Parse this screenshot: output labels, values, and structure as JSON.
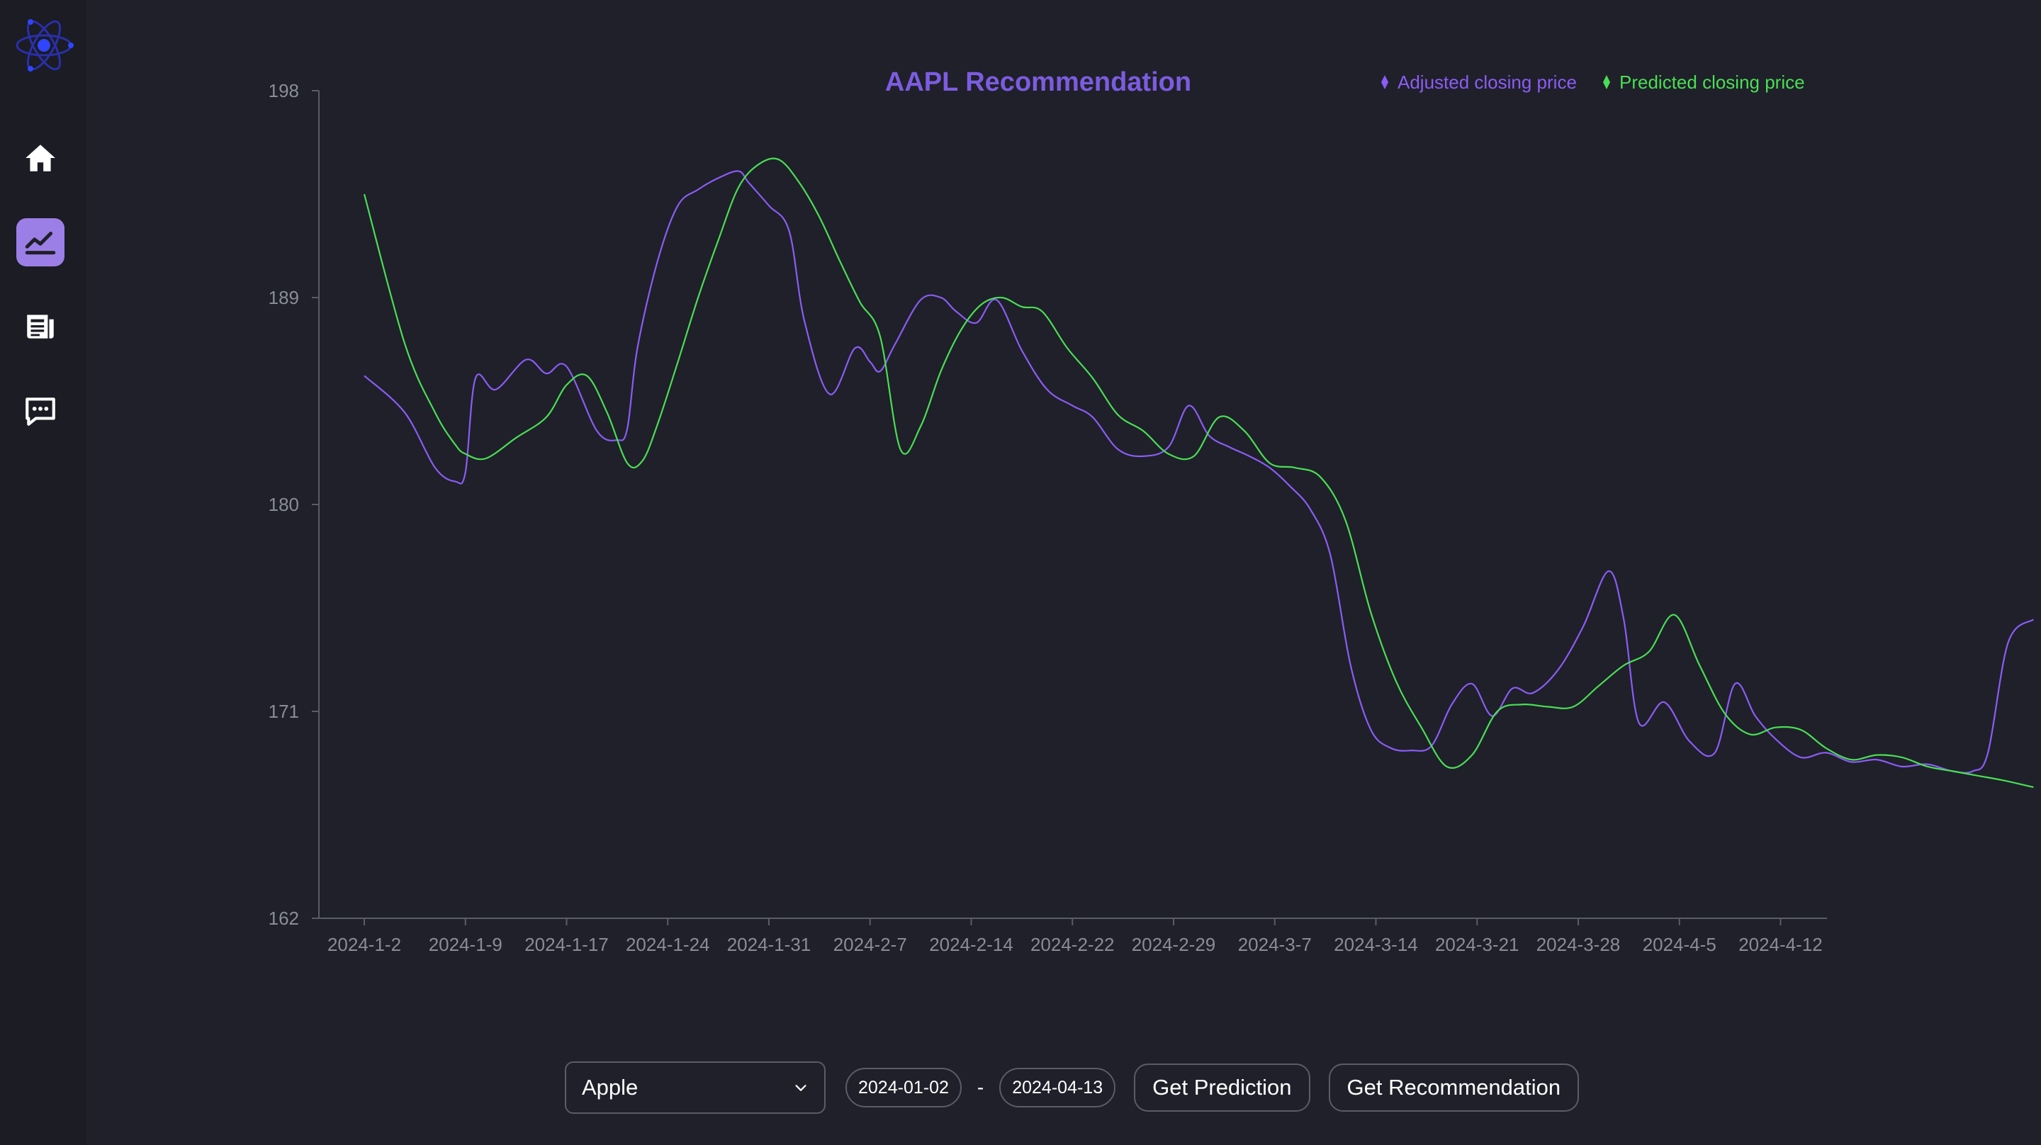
{
  "app": {
    "logo_icon": "atom-icon",
    "accent_color": "#9b7fe6"
  },
  "sidebar": {
    "items": [
      {
        "name": "home",
        "icon": "home-icon",
        "active": false
      },
      {
        "name": "chart",
        "icon": "chart-line-icon",
        "active": true
      },
      {
        "name": "news",
        "icon": "newspaper-icon",
        "active": false
      },
      {
        "name": "chat",
        "icon": "chat-icon",
        "active": false
      }
    ]
  },
  "chart_data": {
    "type": "line",
    "title": "AAPL Recommendation",
    "xlabel": "",
    "ylabel": "",
    "ylim": [
      162,
      198
    ],
    "y_ticks": [
      162,
      171,
      180,
      189,
      198
    ],
    "x_ticks": [
      "2024-1-2",
      "2024-1-9",
      "2024-1-17",
      "2024-1-24",
      "2024-1-31",
      "2024-2-7",
      "2024-2-14",
      "2024-2-22",
      "2024-2-29",
      "2024-3-7",
      "2024-3-14",
      "2024-3-21",
      "2024-3-28",
      "2024-4-5",
      "2024-4-12"
    ],
    "legend_position": "top-right",
    "grid": false,
    "series": [
      {
        "name": "Adjusted closing price",
        "color": "#8b5cf6",
        "points": [
          [
            0,
            185.6
          ],
          [
            0.4,
            184.0
          ],
          [
            0.7,
            181.6
          ],
          [
            0.9,
            181.0
          ],
          [
            1.0,
            181.4
          ],
          [
            1.1,
            185.5
          ],
          [
            1.3,
            185.0
          ],
          [
            1.6,
            186.3
          ],
          [
            1.8,
            185.7
          ],
          [
            2.0,
            186.0
          ],
          [
            2.3,
            183.2
          ],
          [
            2.5,
            182.8
          ],
          [
            2.6,
            183.3
          ],
          [
            2.7,
            186.8
          ],
          [
            2.9,
            190.6
          ],
          [
            3.1,
            193.0
          ],
          [
            3.3,
            193.7
          ],
          [
            3.5,
            194.2
          ],
          [
            3.7,
            194.5
          ],
          [
            3.8,
            194.0
          ],
          [
            4.0,
            193.0
          ],
          [
            4.2,
            191.9
          ],
          [
            4.35,
            188.0
          ],
          [
            4.6,
            184.8
          ],
          [
            4.85,
            186.8
          ],
          [
            5.0,
            186.2
          ],
          [
            5.1,
            185.8
          ],
          [
            5.25,
            187.0
          ],
          [
            5.5,
            188.9
          ],
          [
            5.7,
            189.0
          ],
          [
            5.85,
            188.4
          ],
          [
            6.05,
            187.9
          ],
          [
            6.25,
            188.9
          ],
          [
            6.5,
            186.7
          ],
          [
            6.75,
            185.0
          ],
          [
            7.0,
            184.3
          ],
          [
            7.2,
            183.8
          ],
          [
            7.45,
            182.4
          ],
          [
            7.7,
            182.1
          ],
          [
            7.95,
            182.5
          ],
          [
            8.15,
            184.3
          ],
          [
            8.35,
            183.0
          ],
          [
            8.55,
            182.5
          ],
          [
            8.75,
            182.1
          ],
          [
            8.95,
            181.6
          ],
          [
            9.15,
            180.8
          ],
          [
            9.35,
            179.8
          ],
          [
            9.55,
            177.8
          ],
          [
            9.75,
            173.0
          ],
          [
            9.95,
            170.2
          ],
          [
            10.15,
            169.4
          ],
          [
            10.35,
            169.3
          ],
          [
            10.55,
            169.5
          ],
          [
            10.75,
            171.3
          ],
          [
            10.95,
            172.2
          ],
          [
            11.15,
            170.8
          ],
          [
            11.35,
            172.0
          ],
          [
            11.55,
            171.8
          ],
          [
            11.8,
            172.8
          ],
          [
            12.05,
            174.7
          ],
          [
            12.3,
            177.1
          ],
          [
            12.45,
            175.0
          ],
          [
            12.6,
            170.5
          ],
          [
            12.85,
            171.4
          ],
          [
            13.1,
            169.7
          ],
          [
            13.35,
            169.2
          ],
          [
            13.55,
            172.2
          ],
          [
            13.75,
            170.8
          ],
          [
            13.95,
            169.8
          ],
          [
            14.2,
            169.0
          ],
          [
            14.45,
            169.2
          ],
          [
            14.7,
            168.8
          ],
          [
            14.95,
            168.9
          ],
          [
            15.2,
            168.6
          ],
          [
            15.45,
            168.7
          ],
          [
            15.7,
            168.4
          ],
          [
            15.9,
            168.4
          ],
          [
            16.05,
            169.2
          ],
          [
            16.25,
            174.0
          ],
          [
            16.5,
            175.0
          ]
        ]
      },
      {
        "name": "Predicted closing price",
        "color": "#4ade55",
        "points": [
          [
            0,
            193.5
          ],
          [
            0.4,
            187.0
          ],
          [
            0.7,
            184.0
          ],
          [
            0.9,
            182.6
          ],
          [
            1.0,
            182.2
          ],
          [
            1.2,
            182.0
          ],
          [
            1.5,
            182.9
          ],
          [
            1.8,
            183.8
          ],
          [
            2.0,
            185.2
          ],
          [
            2.2,
            185.6
          ],
          [
            2.4,
            184.0
          ],
          [
            2.6,
            181.8
          ],
          [
            2.75,
            181.9
          ],
          [
            2.9,
            183.5
          ],
          [
            3.1,
            186.2
          ],
          [
            3.3,
            189.0
          ],
          [
            3.5,
            191.5
          ],
          [
            3.7,
            193.8
          ],
          [
            3.9,
            194.8
          ],
          [
            4.1,
            195.0
          ],
          [
            4.3,
            194.0
          ],
          [
            4.5,
            192.5
          ],
          [
            4.7,
            190.6
          ],
          [
            4.9,
            188.8
          ],
          [
            5.1,
            187.3
          ],
          [
            5.3,
            182.4
          ],
          [
            5.5,
            183.4
          ],
          [
            5.7,
            185.8
          ],
          [
            5.9,
            187.6
          ],
          [
            6.1,
            188.7
          ],
          [
            6.3,
            189.0
          ],
          [
            6.5,
            188.6
          ],
          [
            6.7,
            188.4
          ],
          [
            6.95,
            186.8
          ],
          [
            7.2,
            185.5
          ],
          [
            7.45,
            183.9
          ],
          [
            7.7,
            183.2
          ],
          [
            7.95,
            182.2
          ],
          [
            8.2,
            182.1
          ],
          [
            8.45,
            183.8
          ],
          [
            8.7,
            183.2
          ],
          [
            8.95,
            181.8
          ],
          [
            9.2,
            181.6
          ],
          [
            9.45,
            181.2
          ],
          [
            9.7,
            179.3
          ],
          [
            9.95,
            175.3
          ],
          [
            10.2,
            172.3
          ],
          [
            10.45,
            170.3
          ],
          [
            10.7,
            168.6
          ],
          [
            10.95,
            169.1
          ],
          [
            11.2,
            171.0
          ],
          [
            11.45,
            171.3
          ],
          [
            11.7,
            171.2
          ],
          [
            11.95,
            171.2
          ],
          [
            12.2,
            172.1
          ],
          [
            12.45,
            173.0
          ],
          [
            12.7,
            173.6
          ],
          [
            12.95,
            175.2
          ],
          [
            13.2,
            173.0
          ],
          [
            13.45,
            170.9
          ],
          [
            13.7,
            170.0
          ],
          [
            13.95,
            170.3
          ],
          [
            14.2,
            170.2
          ],
          [
            14.45,
            169.4
          ],
          [
            14.7,
            168.9
          ],
          [
            14.95,
            169.1
          ],
          [
            15.2,
            169.0
          ],
          [
            15.45,
            168.6
          ],
          [
            15.7,
            168.4
          ],
          [
            15.95,
            168.2
          ],
          [
            16.2,
            168.0
          ],
          [
            16.5,
            167.7
          ]
        ]
      }
    ]
  },
  "controls": {
    "stock_select": {
      "value": "Apple"
    },
    "start_date": "2024-01-02",
    "date_separator": "-",
    "end_date": "2024-04-13",
    "get_prediction_label": "Get Prediction",
    "get_recommendation_label": "Get Recommendation"
  }
}
